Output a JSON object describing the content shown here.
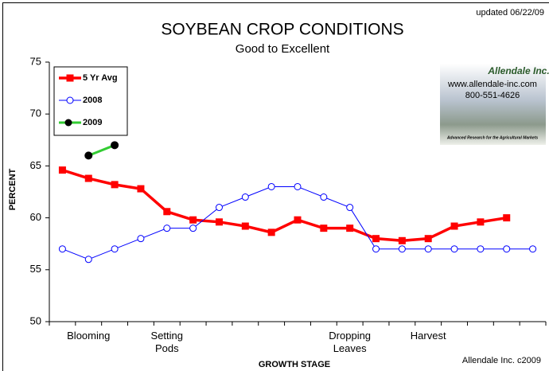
{
  "chart_data": {
    "type": "line",
    "title": "SOYBEAN CROP CONDITIONS",
    "subtitle": "Good to Excellent",
    "y_label": "PERCENT",
    "x_label": "GROWTH STAGE",
    "annotations": [
      "updated 06/22/09",
      "Allendale Inc. c2009",
      "Allendale Inc.",
      "www.allendale-inc.com",
      "800-551-4626",
      "Advanced Research for the Agricultural Markets"
    ],
    "categories": [
      null,
      "Blooming",
      null,
      null,
      "Setting Pods",
      null,
      null,
      null,
      null,
      null,
      null,
      "Dropping Leaves",
      null,
      null,
      "Harvest",
      null,
      null,
      null,
      null
    ],
    "series": [
      {
        "name": "5 Yr Avg",
        "color": "#ff0000",
        "marker": "square",
        "values": [
          64.6,
          63.8,
          63.2,
          62.8,
          60.6,
          59.8,
          59.6,
          59.2,
          58.6,
          59.8,
          59.0,
          59.0,
          58.0,
          57.8,
          58.0,
          59.2,
          59.6,
          60.0,
          null
        ]
      },
      {
        "name": "2008",
        "color": "#0000ff",
        "marker": "open-circle",
        "values": [
          57,
          56,
          57,
          58,
          59,
          59,
          61,
          62,
          63,
          63,
          62,
          61,
          57,
          57,
          57,
          57,
          57,
          57,
          57
        ]
      },
      {
        "name": "2009",
        "color": "#33cc33",
        "marker": "circle",
        "marker_color": "#000000",
        "values": [
          null,
          66,
          67,
          null,
          null,
          null,
          null,
          null,
          null,
          null,
          null,
          null,
          null,
          null,
          null,
          null,
          null,
          null,
          null
        ]
      }
    ],
    "ylim": [
      50,
      75
    ],
    "yticks": [
      50,
      55,
      60,
      65,
      70,
      75
    ],
    "grid": false,
    "legend": "top-left"
  }
}
